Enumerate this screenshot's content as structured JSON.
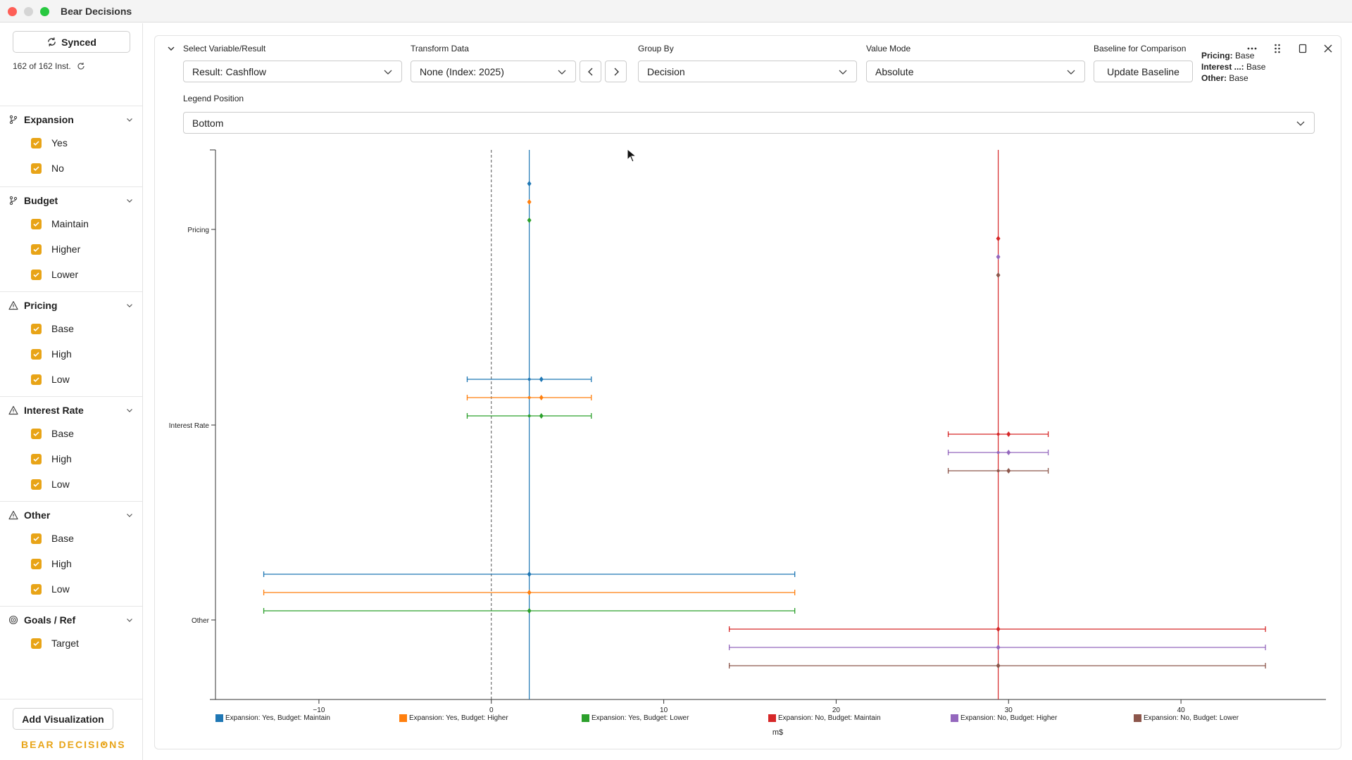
{
  "window": {
    "title": "Bear Decisions"
  },
  "sidebar": {
    "sync_label": "Synced",
    "instances": "162 of 162 Inst.",
    "groups": [
      {
        "title": "Expansion",
        "icon": "branch-icon",
        "options": [
          "Yes",
          "No"
        ]
      },
      {
        "title": "Budget",
        "icon": "branch-icon",
        "options": [
          "Maintain",
          "Higher",
          "Lower"
        ]
      },
      {
        "title": "Pricing",
        "icon": "warning-icon",
        "options": [
          "Base",
          "High",
          "Low"
        ]
      },
      {
        "title": "Interest Rate",
        "icon": "warning-icon",
        "options": [
          "Base",
          "High",
          "Low"
        ]
      },
      {
        "title": "Other",
        "icon": "warning-icon",
        "options": [
          "Base",
          "High",
          "Low"
        ]
      },
      {
        "title": "Goals / Ref",
        "icon": "target-icon",
        "options": [
          "Target"
        ]
      }
    ],
    "add_visualization": "Add Visualization",
    "brand": "BEAR DECISIONS",
    "accent": "#e8a417"
  },
  "controls": {
    "variable_label": "Select Variable/Result",
    "variable_value": "Result: Cashflow",
    "transform_label": "Transform Data",
    "transform_value": "None (Index: 2025)",
    "group_label": "Group By",
    "group_value": "Decision",
    "value_mode_label": "Value Mode",
    "value_mode_value": "Absolute",
    "baseline_label": "Baseline for Comparison",
    "update_baseline": "Update Baseline",
    "baseline_info": [
      {
        "key": "Pricing:",
        "value": "Base"
      },
      {
        "key": "Interest ...:",
        "value": "Base"
      },
      {
        "key": "Other:",
        "value": "Base"
      }
    ],
    "legend_position_label": "Legend Position",
    "legend_position_value": "Bottom"
  },
  "chart_data": {
    "type": "scatter",
    "orientation": "horizontal",
    "categories": [
      "Pricing",
      "Interest Rate",
      "Other"
    ],
    "xlabel": "m$",
    "xlim": [
      -16,
      48
    ],
    "xticks": [
      -10,
      0,
      10,
      20,
      30,
      40
    ],
    "reference_line": 0,
    "legend_position": "bottom",
    "series": [
      {
        "name": "Expansion: Yes, Budget: Maintain",
        "color": "#1f77b4",
        "base": 2.2,
        "ranges": [
          {
            "category": "Pricing",
            "low": 2.2,
            "high": 2.2,
            "mid": 2.2
          },
          {
            "category": "Interest Rate",
            "low": -1.4,
            "high": 5.8,
            "mid": 2.9
          },
          {
            "category": "Other",
            "low": -13.2,
            "high": 17.6,
            "mid": 2.2
          }
        ]
      },
      {
        "name": "Expansion: Yes, Budget: Higher",
        "color": "#ff7f0e",
        "base": 2.2,
        "ranges": [
          {
            "category": "Pricing",
            "low": 2.2,
            "high": 2.2,
            "mid": 2.2
          },
          {
            "category": "Interest Rate",
            "low": -1.4,
            "high": 5.8,
            "mid": 2.9
          },
          {
            "category": "Other",
            "low": -13.2,
            "high": 17.6,
            "mid": 2.2
          }
        ]
      },
      {
        "name": "Expansion: Yes, Budget: Lower",
        "color": "#2ca02c",
        "base": 2.2,
        "ranges": [
          {
            "category": "Pricing",
            "low": 2.2,
            "high": 2.2,
            "mid": 2.2
          },
          {
            "category": "Interest Rate",
            "low": -1.4,
            "high": 5.8,
            "mid": 2.9
          },
          {
            "category": "Other",
            "low": -13.2,
            "high": 17.6,
            "mid": 2.2
          }
        ]
      },
      {
        "name": "Expansion: No, Budget: Maintain",
        "color": "#d62728",
        "base": 29.4,
        "ranges": [
          {
            "category": "Pricing",
            "low": 29.4,
            "high": 29.4,
            "mid": 29.4
          },
          {
            "category": "Interest Rate",
            "low": 26.5,
            "high": 32.3,
            "mid": 30.0
          },
          {
            "category": "Other",
            "low": 13.8,
            "high": 44.9,
            "mid": 29.4
          }
        ]
      },
      {
        "name": "Expansion: No, Budget: Higher",
        "color": "#9467bd",
        "base": 29.4,
        "ranges": [
          {
            "category": "Pricing",
            "low": 29.4,
            "high": 29.4,
            "mid": 29.4
          },
          {
            "category": "Interest Rate",
            "low": 26.5,
            "high": 32.3,
            "mid": 30.0
          },
          {
            "category": "Other",
            "low": 13.8,
            "high": 44.9,
            "mid": 29.4
          }
        ]
      },
      {
        "name": "Expansion: No, Budget: Lower",
        "color": "#8c564b",
        "base": 29.4,
        "ranges": [
          {
            "category": "Pricing",
            "low": 29.4,
            "high": 29.4,
            "mid": 29.4
          },
          {
            "category": "Interest Rate",
            "low": 26.5,
            "high": 32.3,
            "mid": 30.0
          },
          {
            "category": "Other",
            "low": 13.8,
            "high": 44.9,
            "mid": 29.4
          }
        ]
      }
    ]
  }
}
